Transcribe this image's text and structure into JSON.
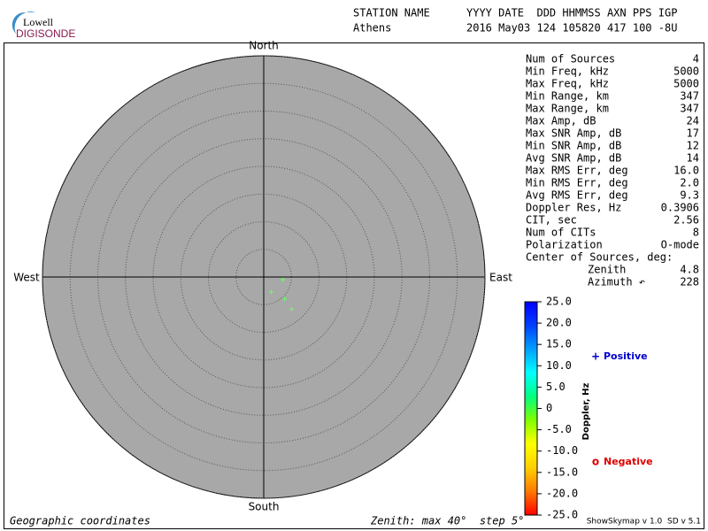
{
  "logo": {
    "top": "Lowell",
    "bottom": "DIGISONDE"
  },
  "header": {
    "labels": [
      "STATION NAME",
      "YYYY DATE  DDD HHMMSS AXN PPS IGP"
    ],
    "values": [
      "Athens",
      "2016 May03 124 105820 417 100 -8U"
    ]
  },
  "stats": [
    [
      "Num of Sources",
      "4"
    ],
    [
      "Min Freq, kHz",
      "5000"
    ],
    [
      "Max Freq, kHz",
      "5000"
    ],
    [
      "Min Range, km",
      "347"
    ],
    [
      "Max Range, km",
      "347"
    ],
    [
      "Max Amp, dB",
      "24"
    ],
    [
      "Max SNR Amp, dB",
      "17"
    ],
    [
      "Min SNR Amp, dB",
      "12"
    ],
    [
      "Avg SNR Amp, dB",
      "14"
    ],
    [
      "Max RMS Err, deg",
      "16.0"
    ],
    [
      "Min RMS Err, deg",
      "2.0"
    ],
    [
      "Avg RMS Err, deg",
      "9.3"
    ],
    [
      "Doppler Res, Hz",
      "0.3906"
    ],
    [
      "CIT, sec",
      "2.56"
    ],
    [
      "Num of CITs",
      "8"
    ],
    [
      "Polarization",
      "O-mode"
    ],
    [
      "Center of Sources, deg:"
    ],
    [
      "Zenith",
      "4.8"
    ],
    [
      "Azimuth ↶",
      "228"
    ]
  ],
  "chart_data": {
    "type": "skymap",
    "directions": {
      "north": "North",
      "south": "South",
      "east": "East",
      "west": "West"
    },
    "rlim": [
      0,
      40
    ],
    "rticks": [
      5,
      10,
      15,
      20,
      25,
      30,
      35,
      40
    ],
    "series": [
      {
        "name": "Positive",
        "marker": "+",
        "color": "#0000cc",
        "point_colors": [
          "#66ff66",
          "#66ff66",
          "#66ff66",
          "#66ff66"
        ],
        "zenith": [
          3.5,
          3.0,
          5.5,
          7.7
        ],
        "azimuth": [
          98,
          153,
          136.5,
          139
        ]
      },
      {
        "name": "Negative",
        "marker": "o",
        "color": "#dd0000",
        "point_colors": [],
        "zenith": [],
        "azimuth": []
      }
    ],
    "colorbar": {
      "label": "Doppler, Hz",
      "lim": [
        -25,
        25
      ],
      "colors": [
        "#ff0000",
        "#ff7a00",
        "#ffd000",
        "#ffff00",
        "#80ff00",
        "#00ff80",
        "#00ffff",
        "#00a0ff",
        "#0040ff",
        "#0000ff"
      ],
      "ticks": [
        {
          "value": 25,
          "label": "25.0"
        },
        {
          "value": 20,
          "label": "20.0"
        },
        {
          "value": 15,
          "label": "15.0"
        },
        {
          "value": 10,
          "label": "10.0"
        },
        {
          "value": 5,
          "label": "5.0"
        },
        0,
        {
          "value": -5,
          "label": "-5.0"
        },
        {
          "value": -10,
          "label": "-10.0"
        },
        {
          "value": -15,
          "label": "-15.0"
        },
        {
          "value": -20,
          "label": "-20.0"
        },
        {
          "value": -25,
          "label": "-25.0"
        }
      ]
    }
  },
  "footer": {
    "left": "Geographic coordinates",
    "center": "Zenith: max 40°  step 5°",
    "right": "ShowSkymap v 1.0  SD v 5.1"
  }
}
